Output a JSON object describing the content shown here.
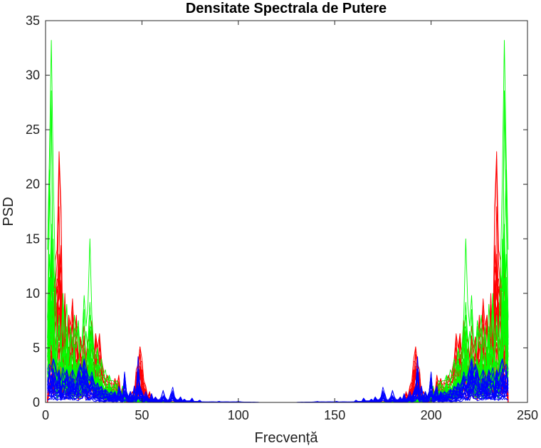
{
  "chart_data": {
    "type": "line",
    "title": "Densitate Spectrala de Putere",
    "xlabel": "Frecvență",
    "ylabel": "PSD",
    "xlim": [
      0,
      250
    ],
    "ylim": [
      0,
      35
    ],
    "xticks": [
      "0",
      "50",
      "100",
      "150",
      "200",
      "250"
    ],
    "yticks": [
      "0",
      "5",
      "10",
      "15",
      "20",
      "25",
      "30",
      "35"
    ],
    "x_range_of_data": [
      1,
      240
    ],
    "symmetry": "mirrored about x = 120.5",
    "grid": false,
    "box": true,
    "legend": "none",
    "series": [
      {
        "color": "#ff0000",
        "peaks": [
          [
            2,
            10
          ],
          [
            3,
            14
          ],
          [
            4,
            5
          ],
          [
            5,
            13
          ],
          [
            6,
            14
          ],
          [
            7,
            23
          ],
          [
            8,
            18
          ],
          [
            9,
            5
          ],
          [
            10,
            10
          ],
          [
            11,
            5
          ],
          [
            12,
            8
          ],
          [
            13,
            7
          ],
          [
            14,
            9.5
          ],
          [
            15,
            6
          ],
          [
            16,
            8
          ],
          [
            17,
            4
          ],
          [
            18,
            6
          ],
          [
            19,
            5
          ],
          [
            20,
            7
          ],
          [
            21,
            4
          ],
          [
            22,
            6
          ],
          [
            23,
            5
          ],
          [
            24,
            7.5
          ],
          [
            25,
            4
          ],
          [
            26,
            6.3
          ],
          [
            27,
            5
          ],
          [
            28,
            6.3
          ],
          [
            29,
            4
          ],
          [
            30,
            3
          ],
          [
            31,
            2
          ],
          [
            32,
            2.5
          ],
          [
            33,
            2
          ],
          [
            34,
            2
          ],
          [
            35,
            1.5
          ],
          [
            36,
            2.2
          ],
          [
            37,
            1.5
          ],
          [
            38,
            2.5
          ],
          [
            40,
            1.5
          ],
          [
            42,
            1
          ],
          [
            45,
            1
          ],
          [
            47,
            3
          ],
          [
            48,
            3.5
          ],
          [
            49,
            5.1
          ],
          [
            50,
            4
          ],
          [
            51,
            2
          ],
          [
            52,
            1.5
          ],
          [
            54,
            1
          ],
          [
            57,
            0.5
          ]
        ]
      },
      {
        "color": "#00ff00",
        "peaks": [
          [
            1,
            14
          ],
          [
            2,
            22.5
          ],
          [
            3,
            33.2
          ],
          [
            4,
            21
          ],
          [
            5,
            12
          ],
          [
            6,
            5
          ],
          [
            7,
            8
          ],
          [
            8,
            5
          ],
          [
            9,
            10
          ],
          [
            10,
            6
          ],
          [
            11,
            9
          ],
          [
            12,
            4
          ],
          [
            13,
            7
          ],
          [
            14,
            5
          ],
          [
            15,
            8
          ],
          [
            16,
            6
          ],
          [
            17,
            7.5
          ],
          [
            18,
            4.5
          ],
          [
            19,
            6
          ],
          [
            20,
            9.8
          ],
          [
            21,
            7
          ],
          [
            22,
            9
          ],
          [
            23,
            15
          ],
          [
            24,
            8
          ],
          [
            25,
            5
          ],
          [
            26,
            4
          ],
          [
            27,
            5
          ],
          [
            28,
            3
          ],
          [
            29,
            4
          ],
          [
            30,
            2.5
          ],
          [
            31,
            3
          ],
          [
            32,
            2
          ],
          [
            33,
            2.5
          ],
          [
            34,
            2
          ],
          [
            35,
            2
          ],
          [
            36,
            1.8
          ],
          [
            37,
            2
          ],
          [
            38,
            1.5
          ],
          [
            40,
            1.5
          ],
          [
            42,
            1
          ],
          [
            44,
            1
          ],
          [
            47,
            1
          ],
          [
            50,
            0.5
          ]
        ]
      },
      {
        "color": "#0000ff",
        "peaks": [
          [
            1,
            3
          ],
          [
            2,
            3.5
          ],
          [
            3,
            3.2
          ],
          [
            4,
            4
          ],
          [
            5,
            3.5
          ],
          [
            6,
            2.5
          ],
          [
            7,
            3
          ],
          [
            8,
            2
          ],
          [
            9,
            3.2
          ],
          [
            10,
            2.5
          ],
          [
            11,
            3
          ],
          [
            12,
            2.2
          ],
          [
            13,
            2.5
          ],
          [
            14,
            3
          ],
          [
            15,
            2.5
          ],
          [
            16,
            2
          ],
          [
            17,
            3
          ],
          [
            18,
            3.5
          ],
          [
            19,
            3
          ],
          [
            20,
            4
          ],
          [
            21,
            3.2
          ],
          [
            22,
            2.5
          ],
          [
            23,
            2.2
          ],
          [
            24,
            2.8
          ],
          [
            25,
            2
          ],
          [
            26,
            1.5
          ],
          [
            27,
            1.8
          ],
          [
            28,
            1.3
          ],
          [
            29,
            1.5
          ],
          [
            30,
            1
          ],
          [
            31,
            1.2
          ],
          [
            32,
            1
          ],
          [
            33,
            0.8
          ],
          [
            34,
            1
          ],
          [
            35,
            0.8
          ],
          [
            36,
            1
          ],
          [
            38,
            1.5
          ],
          [
            39,
            1
          ],
          [
            40,
            0.5
          ],
          [
            41,
            2.8
          ],
          [
            42,
            1
          ],
          [
            44,
            1
          ],
          [
            46,
            1.5
          ],
          [
            47,
            1
          ],
          [
            48,
            4.2
          ],
          [
            49,
            1.5
          ],
          [
            50,
            1
          ],
          [
            52,
            1
          ],
          [
            53,
            0.5
          ],
          [
            55,
            0.8
          ],
          [
            57,
            0.5
          ],
          [
            60,
            0.5
          ],
          [
            61,
            1.1
          ],
          [
            62,
            0.5
          ],
          [
            65,
            0.8
          ],
          [
            66,
            1.4
          ],
          [
            67,
            0.5
          ],
          [
            70,
            0.5
          ],
          [
            72,
            0.3
          ],
          [
            76,
            0.4
          ],
          [
            80,
            0.2
          ],
          [
            90,
            0.1
          ],
          [
            100,
            0.1
          ]
        ]
      }
    ]
  }
}
